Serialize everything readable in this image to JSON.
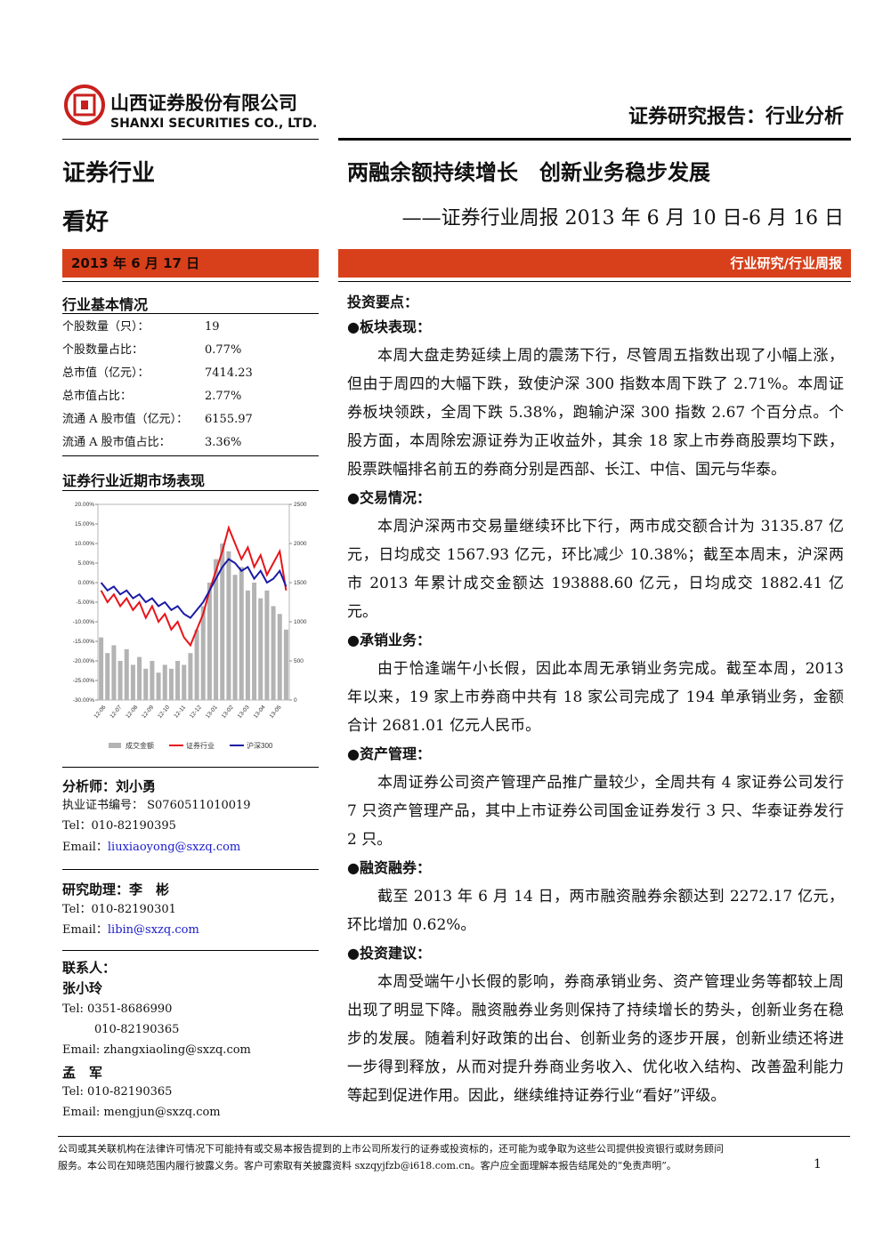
{
  "header": {
    "company_cn": "山西证券股份有限公司",
    "company_en": "SHANXI SECURITIES CO., LTD.",
    "report_type": "证券研究报告：行业分析"
  },
  "sidebar": {
    "industry": "证券行业",
    "rating": "看好",
    "date": "2013 年 6 月 17 日",
    "basic_info": {
      "title": "行业基本情况",
      "rows": [
        [
          "个股数量（只）：",
          "19"
        ],
        [
          "个股数量占比：",
          "0.77%"
        ],
        [
          "总市值（亿元）：",
          "7414.23"
        ],
        [
          "总市值占比：",
          "2.77%"
        ],
        [
          "流通 A 股市值（亿元）：",
          "6155.97"
        ],
        [
          "流通 A 股市值占比：",
          "3.36%"
        ]
      ]
    },
    "chart_title": "证券行业近期市场表现",
    "chart": {
      "type": "bar-line",
      "x_labels": [
        "12-06",
        "12-07",
        "12-08",
        "12-09",
        "12-10",
        "12-11",
        "12-12",
        "13-01",
        "13-02",
        "13-03",
        "13-04",
        "13-05"
      ],
      "series": [
        {
          "name": "成交金额",
          "color": "#b3b3b3",
          "axis": "y2",
          "values": [
            800,
            600,
            700,
            500,
            650,
            450,
            550,
            400,
            500,
            350,
            450,
            400,
            500,
            450,
            600,
            900,
            1200,
            1500,
            1800,
            2000,
            1900,
            1600,
            1700,
            1400,
            1500,
            1300,
            1400,
            1200,
            1100,
            900
          ]
        },
        {
          "name": "证券行业",
          "color": "#e8141a",
          "values": [
            -2,
            -5,
            -3,
            -6,
            -4,
            -7,
            -5,
            -9,
            -6,
            -10,
            -8,
            -12,
            -10,
            -14,
            -16,
            -12,
            -8,
            -2,
            3,
            8,
            14,
            10,
            6,
            9,
            4,
            7,
            2,
            5,
            8,
            -2
          ]
        },
        {
          "name": "沪深300",
          "color": "#1a1aa6",
          "values": [
            0,
            -2,
            -1,
            -3,
            -2,
            -4,
            -3,
            -5,
            -4,
            -6,
            -5,
            -7,
            -6,
            -8,
            -9,
            -7,
            -5,
            -2,
            1,
            4,
            6,
            5,
            3,
            4,
            1,
            3,
            0,
            1,
            3,
            -1
          ]
        }
      ],
      "ylim": [
        -30,
        20
      ],
      "yticks": [
        {
          "value": 20,
          "label": "20.00%"
        },
        {
          "value": 15,
          "label": "15.00%"
        },
        {
          "value": 10,
          "label": "10.00%"
        },
        {
          "value": 5,
          "label": "5.00%"
        },
        {
          "value": 0,
          "label": "0.00%"
        },
        {
          "value": -5,
          "label": "-5.00%"
        },
        {
          "value": -10,
          "label": "-10.00%"
        },
        {
          "value": -15,
          "label": "-15.00%"
        },
        {
          "value": -20,
          "label": "-20.00%"
        },
        {
          "value": -25,
          "label": "-25.00%"
        },
        {
          "value": -30,
          "label": "-30.00%"
        }
      ],
      "y2lim": [
        0,
        2500
      ],
      "y2ticks": [
        0,
        500,
        1000,
        1500,
        2000,
        2500
      ]
    },
    "analyst": {
      "name": "分析师：刘小勇",
      "cert": "执业证书编号： S0760511010019",
      "tel": "Tel：010-82190395",
      "email_label": "Email：",
      "email": "liuxiaoyong@sxzq.com"
    },
    "assistant": {
      "name": "研究助理：李　彬",
      "tel": "Tel：010-82190301",
      "email_label": "Email：",
      "email": "libin@sxzq.com"
    },
    "contacts": {
      "title": "联系人：",
      "people": [
        {
          "name": "张小玲",
          "tel": "Tel: 0351-8686990",
          "tel2": "010-82190365",
          "email": "Email: zhangxiaoling@sxzq.com"
        },
        {
          "name": "孟　军",
          "tel": "Tel: 010-82190365",
          "email": "Email: mengjun@sxzq.com"
        }
      ]
    }
  },
  "main": {
    "title": "两融余额持续增长　创新业务稳步发展",
    "subtitle": "——证券行业周报 2013 年 6 月 10 日-6 月 16 日",
    "banner": "行业研究/行业周报",
    "key_points": "投资要点：",
    "sections": [
      {
        "heading": "●板块表现：",
        "text": "本周大盘走势延续上周的震荡下行，尽管周五指数出现了小幅上涨，但由于周四的大幅下跌，致使沪深 300 指数本周下跌了 2.71%。本周证券板块领跌，全周下跌 5.38%，跑输沪深 300 指数 2.67 个百分点。个股方面，本周除宏源证券为正收益外，其余 18 家上市券商股票均下跌，股票跌幅排名前五的券商分别是西部、长江、中信、国元与华泰。"
      },
      {
        "heading": "●交易情况：",
        "text": "本周沪深两市交易量继续环比下行，两市成交额合计为 3135.87 亿元，日均成交 1567.93 亿元，环比减少 10.38%；截至本周末，沪深两市 2013 年累计成交金额达 193888.60 亿元，日均成交 1882.41 亿元。"
      },
      {
        "heading": "●承销业务：",
        "text": "由于恰逢端午小长假，因此本周无承销业务完成。截至本周，2013 年以来，19 家上市券商中共有 18 家公司完成了 194 单承销业务，金额合计 2681.01 亿元人民币。"
      },
      {
        "heading": "●资产管理：",
        "text": "本周证券公司资产管理产品推广量较少，全周共有 4 家证券公司发行 7 只资产管理产品，其中上市证券公司国金证券发行 3 只、华泰证券发行 2 只。"
      },
      {
        "heading": "●融资融券：",
        "text": "截至 2013 年 6 月 14 日，两市融资融券余额达到 2272.17 亿元，环比增加 0.62%。"
      },
      {
        "heading": "●投资建议：",
        "text": "本周受端午小长假的影响，券商承销业务、资产管理业务等都较上周出现了明显下降。融资融券业务则保持了持续增长的势头，创新业务在稳步的发展。随着利好政策的出台、创新业务的逐步开展，创新业绩还将进一步得到释放，从而对提升券商业务收入、优化收入结构、改善盈利能力等起到促进作用。因此，继续维持证券行业“看好”评级。"
      }
    ]
  },
  "footer": {
    "lines": [
      "公司或其关联机构在法律许可情况下可能持有或交易本报告提到的上市公司所发行的证券或投资标的，还可能为或争取为这些公司提供投资银行或财务顾问",
      "服务。本公司在知晓范围内履行披露义务。客户可索取有关披露资料 sxzqyjfzb@i618.com.cn。客户应全面理解本报告结尾处的“免责声明”。"
    ],
    "page": "1"
  }
}
